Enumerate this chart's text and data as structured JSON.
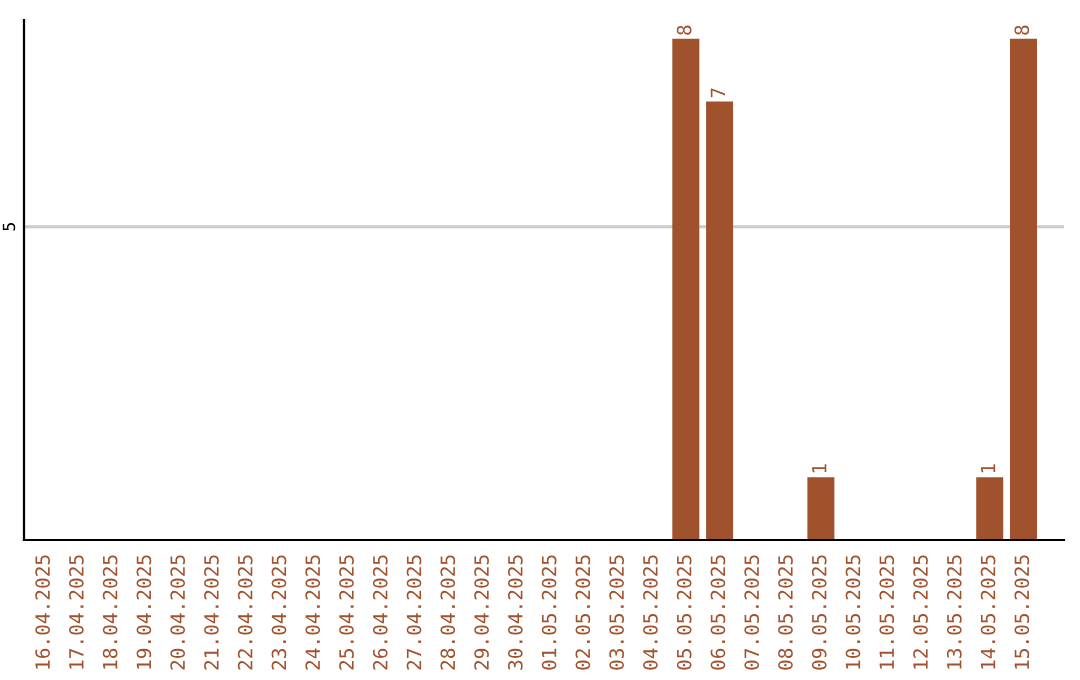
{
  "chart_data": {
    "type": "bar",
    "categories": [
      "16.04.2025",
      "17.04.2025",
      "18.04.2025",
      "19.04.2025",
      "20.04.2025",
      "21.04.2025",
      "22.04.2025",
      "23.04.2025",
      "24.04.2025",
      "25.04.2025",
      "26.04.2025",
      "27.04.2025",
      "28.04.2025",
      "29.04.2025",
      "30.04.2025",
      "01.05.2025",
      "02.05.2025",
      "03.05.2025",
      "04.05.2025",
      "05.05.2025",
      "06.05.2025",
      "07.05.2025",
      "08.05.2025",
      "09.05.2025",
      "10.05.2025",
      "11.05.2025",
      "12.05.2025",
      "13.05.2025",
      "14.05.2025",
      "15.05.2025"
    ],
    "values": [
      null,
      null,
      null,
      null,
      null,
      null,
      null,
      null,
      null,
      null,
      null,
      null,
      null,
      null,
      null,
      null,
      null,
      null,
      null,
      8,
      7,
      null,
      null,
      1,
      null,
      null,
      null,
      null,
      1,
      8
    ],
    "data_labels": true,
    "color": "#a0522d",
    "ylim": [
      0,
      8.3
    ],
    "yticks": [
      5
    ],
    "grid": "y"
  }
}
